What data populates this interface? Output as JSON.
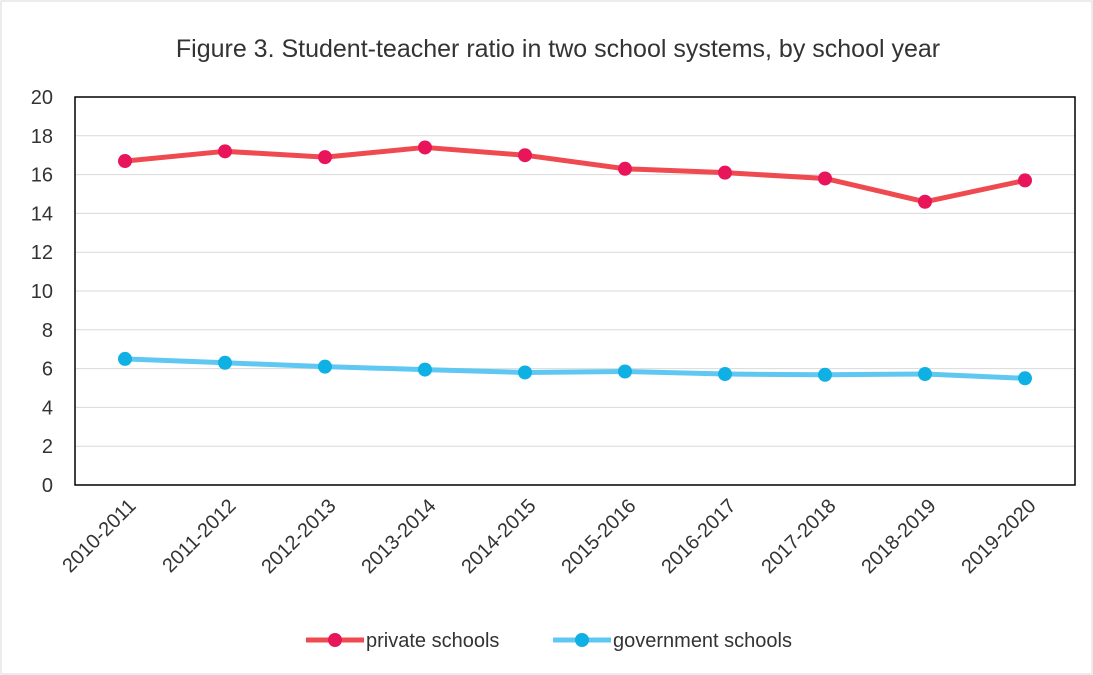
{
  "chart_data": {
    "type": "line",
    "title": "Figure 3. Student-teacher ratio in two school systems, by school year",
    "xlabel": "",
    "ylabel": "",
    "categories": [
      "2010-2011",
      "2011-2012",
      "2012-2013",
      "2013-2014",
      "2014-2015",
      "2015-2016",
      "2016-2017",
      "2017-2018",
      "2018-2019",
      "2019-2020"
    ],
    "ylim": [
      0,
      20
    ],
    "yticks": [
      0,
      2,
      4,
      6,
      8,
      10,
      12,
      14,
      16,
      18,
      20
    ],
    "grid": true,
    "legend_position": "bottom",
    "series": [
      {
        "name": "private schools",
        "color": "#ef4a4f",
        "marker_color": "#e8155a",
        "values": [
          16.7,
          17.2,
          16.9,
          17.4,
          17.0,
          16.3,
          16.1,
          15.8,
          14.6,
          15.7
        ]
      },
      {
        "name": "government schools",
        "color": "#5ec8f2",
        "marker_color": "#0fb0e3",
        "values": [
          6.5,
          6.3,
          6.1,
          5.95,
          5.8,
          5.85,
          5.72,
          5.68,
          5.72,
          5.5
        ]
      }
    ]
  }
}
